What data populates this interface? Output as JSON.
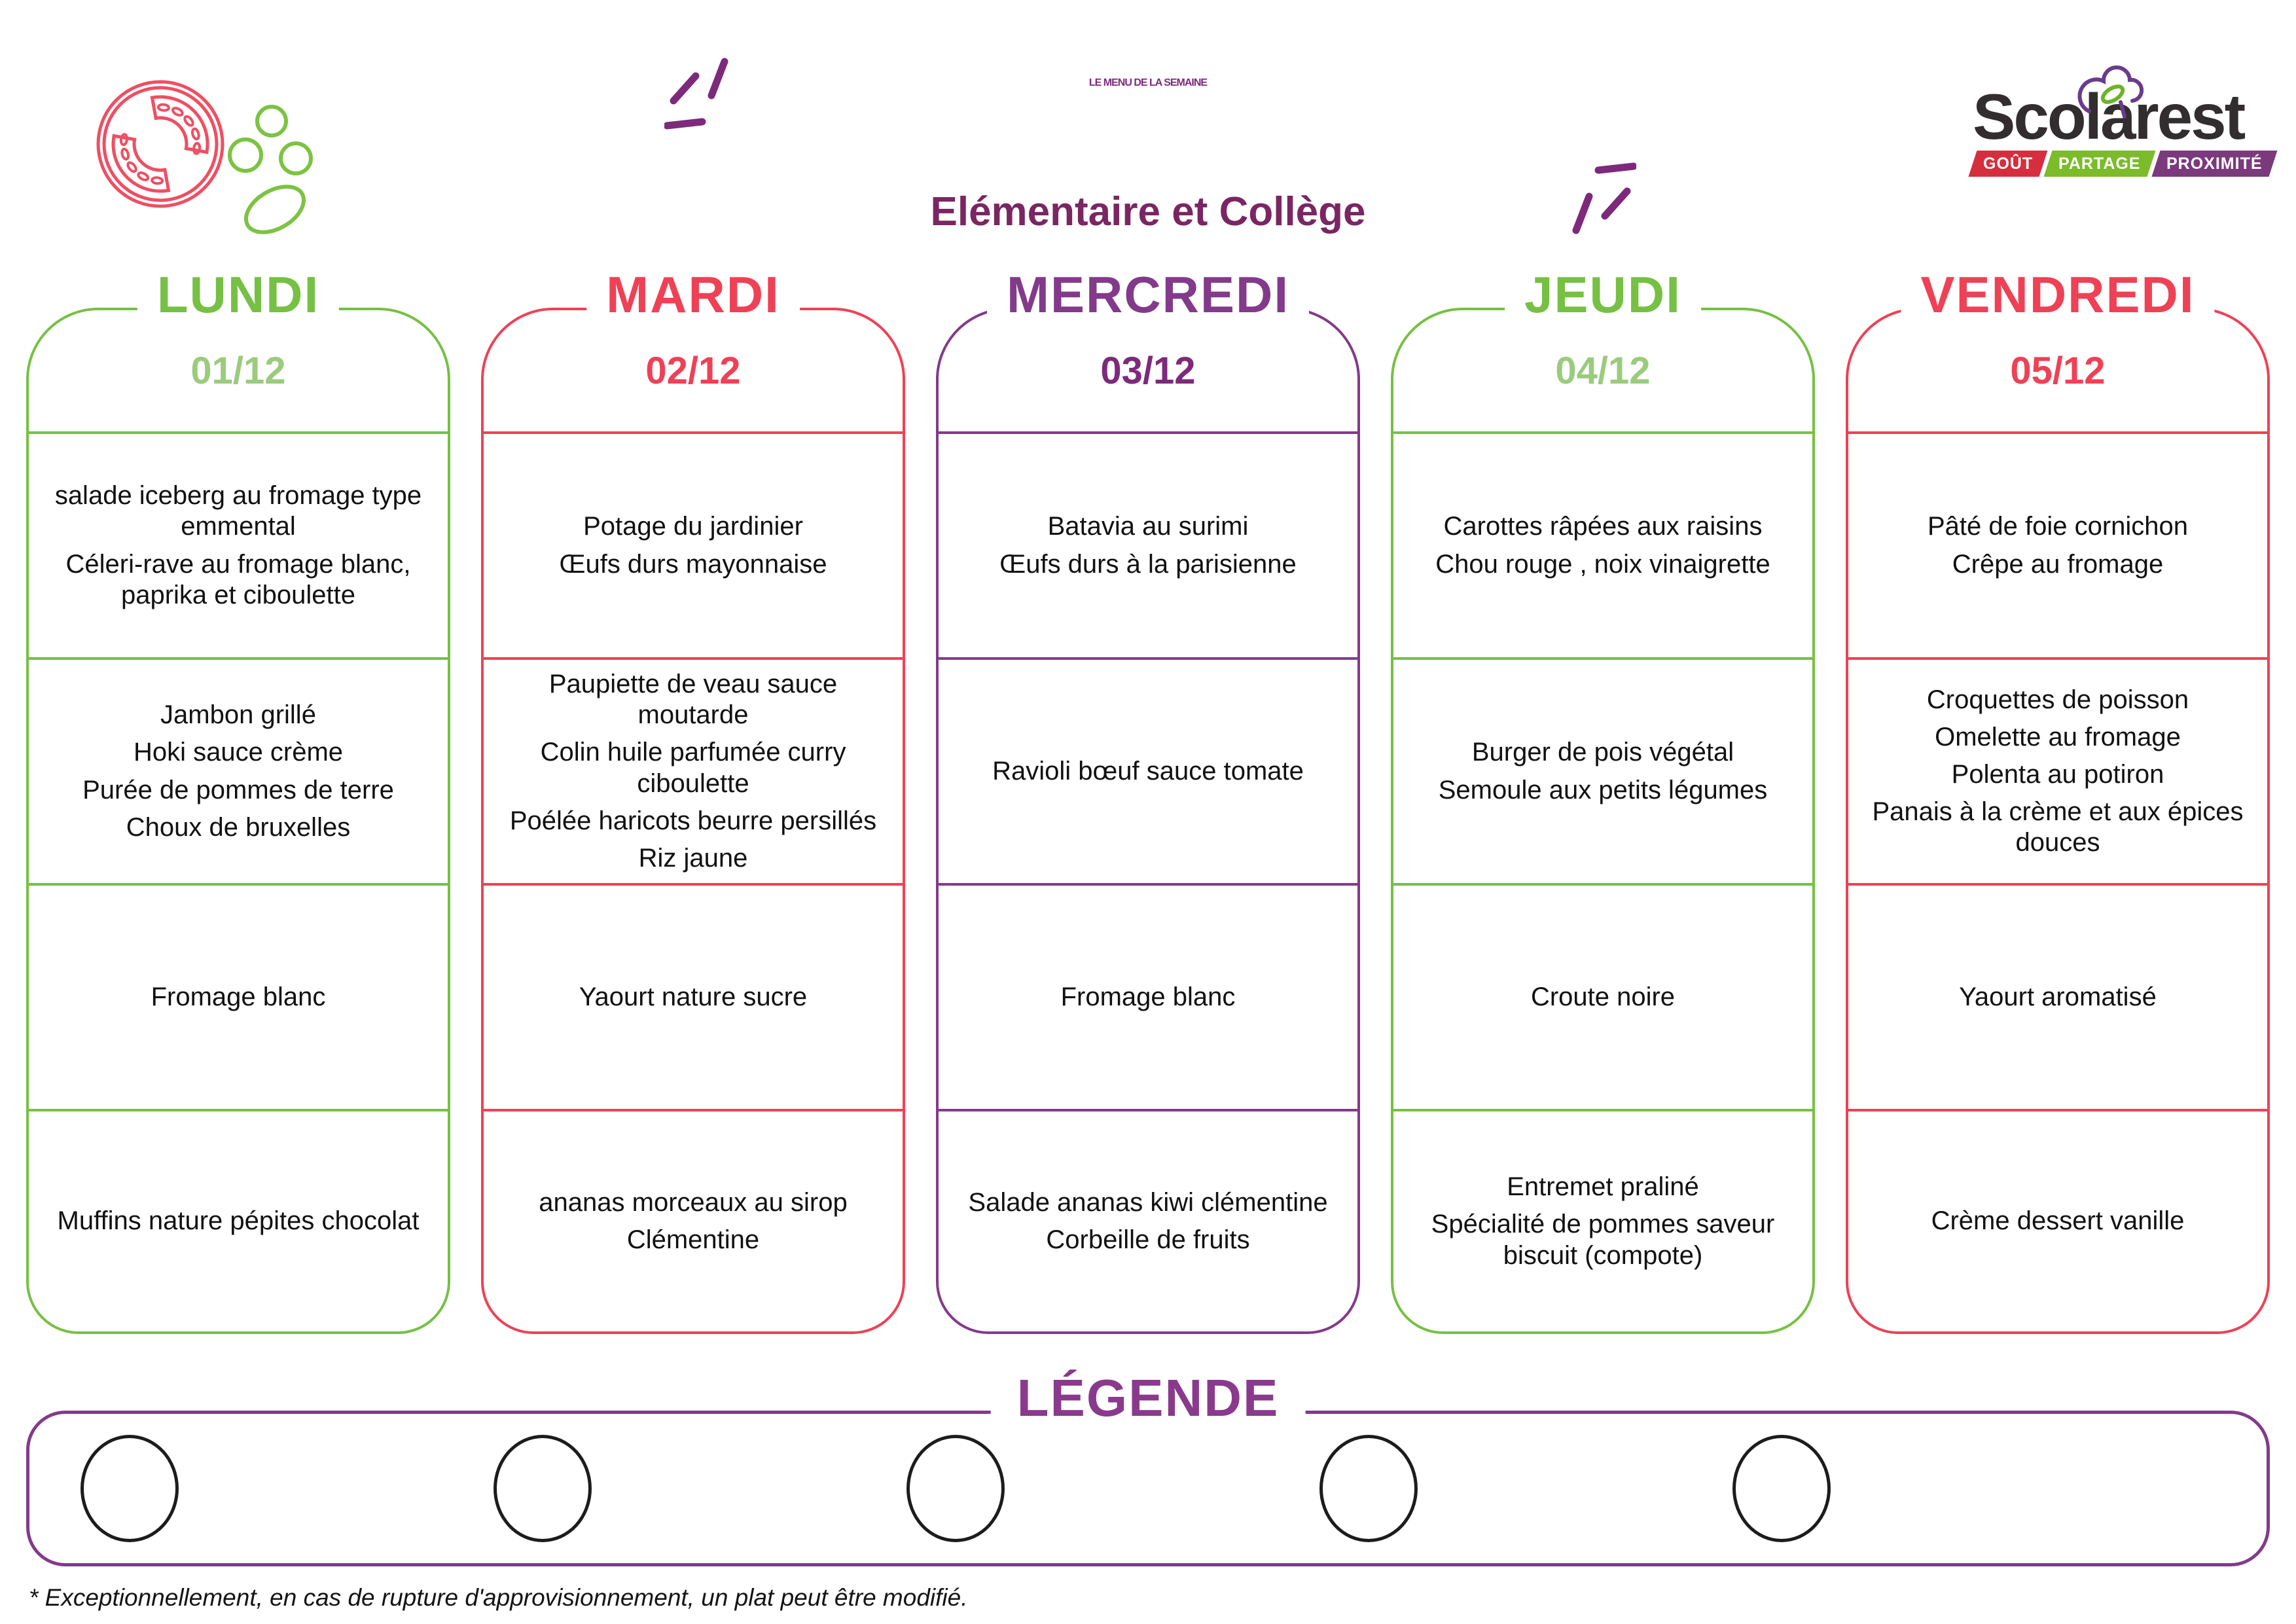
{
  "header": {
    "title": "LE MENU DE LA SEMAINE",
    "subtitle": "Elémentaire et Collège",
    "logo": {
      "name": "Scolarest",
      "taglines": [
        "GOÛT",
        "PARTAGE",
        "PROXIMITÉ"
      ],
      "tagline_colors": [
        "#d62e3e",
        "#7cbb2a",
        "#7b3a7c"
      ]
    },
    "icons": [
      "tomato-slice-icon",
      "peas-icon",
      "logo-cloud-leaf-icon"
    ]
  },
  "colors": {
    "green": "#76c043",
    "green_light": "#9bcb7d",
    "red_pink": "#ee4156",
    "purple": "#833a8a",
    "purple_dark": "#7d2a7c",
    "title_purple": "#7d2a7c"
  },
  "days": [
    {
      "name": "LUNDI",
      "date": "01/12",
      "color": "#76c043",
      "date_color": "#9bcb7d",
      "menu": {
        "starter": [
          "salade iceberg au fromage type emmental",
          "Céleri-rave au fromage blanc, paprika et ciboulette"
        ],
        "main": [
          "Jambon grillé",
          "Hoki sauce crème",
          "Purée de pommes de terre",
          "Choux de bruxelles"
        ],
        "dairy": [
          "Fromage blanc"
        ],
        "dessert": [
          "Muffins nature pépites chocolat"
        ]
      }
    },
    {
      "name": "MARDI",
      "date": "02/12",
      "color": "#ee4156",
      "date_color": "#ee4156",
      "menu": {
        "starter": [
          "Potage du jardinier",
          "Œufs durs mayonnaise"
        ],
        "main": [
          "Paupiette de veau sauce moutarde",
          "Colin huile parfumée curry ciboulette",
          "Poélée haricots beurre persillés",
          "Riz jaune"
        ],
        "dairy": [
          "Yaourt nature sucre"
        ],
        "dessert": [
          "ananas morceaux au sirop",
          "Clémentine"
        ]
      }
    },
    {
      "name": "MERCREDI",
      "date": "03/12",
      "color": "#833a8a",
      "date_color": "#7d2a7c",
      "menu": {
        "starter": [
          "Batavia au surimi",
          "Œufs durs à la parisienne"
        ],
        "main": [
          "Ravioli bœuf sauce tomate"
        ],
        "dairy": [
          "Fromage blanc"
        ],
        "dessert": [
          "Salade ananas kiwi clémentine",
          "Corbeille de fruits"
        ]
      }
    },
    {
      "name": "JEUDI",
      "date": "04/12",
      "color": "#76c043",
      "date_color": "#9bcb7d",
      "menu": {
        "starter": [
          "Carottes râpées aux raisins",
          "Chou rouge , noix vinaigrette"
        ],
        "main": [
          "Burger de pois végétal",
          "Semoule aux petits légumes"
        ],
        "dairy": [
          "Croute noire"
        ],
        "dessert": [
          "Entremet praliné",
          "Spécialité de pommes saveur biscuit (compote)"
        ]
      }
    },
    {
      "name": "VENDREDI",
      "date": "05/12",
      "color": "#ee4156",
      "date_color": "#ee4156",
      "menu": {
        "starter": [
          "Pâté de foie cornichon",
          "Crêpe au fromage"
        ],
        "main": [
          "Croquettes de poisson",
          "Omelette au fromage",
          "Polenta au potiron",
          "Panais à la crème et aux épices douces"
        ],
        "dairy": [
          "Yaourt aromatisé"
        ],
        "dessert": [
          "Crème dessert vanille"
        ]
      }
    }
  ],
  "legend": {
    "title": "LÉGENDE",
    "circles": 5
  },
  "footnote": {
    "text": "* Exceptionnellement, en cas de rupture d'approvisionnement, un plat peut être modifié."
  }
}
